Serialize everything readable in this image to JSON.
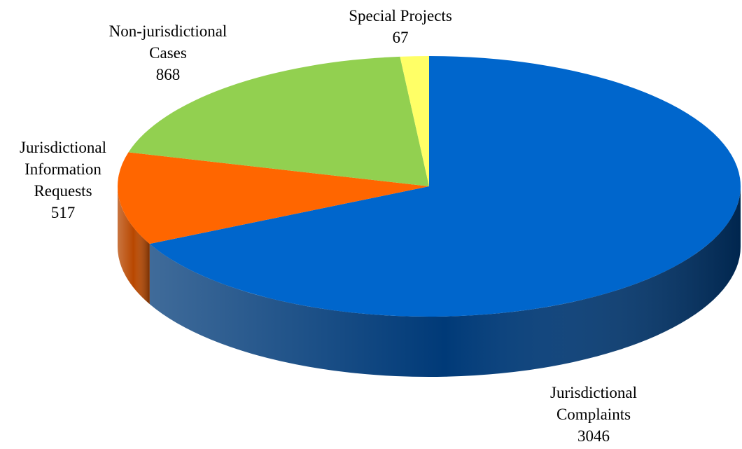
{
  "chart_data": {
    "type": "pie",
    "categories": [
      "Jurisdictional\nComplaints",
      "Jurisdictional\nInformation\nRequests",
      "Non-jurisdictional\nCases",
      "Special Projects"
    ],
    "values": [
      3046,
      517,
      868,
      67
    ],
    "colors": [
      "#0066cc",
      "#ff6600",
      "#92d050",
      "#ffff66"
    ],
    "side_colors": [
      "#003a78",
      "#b84800",
      "#6a9a34",
      "#c8c840"
    ]
  }
}
